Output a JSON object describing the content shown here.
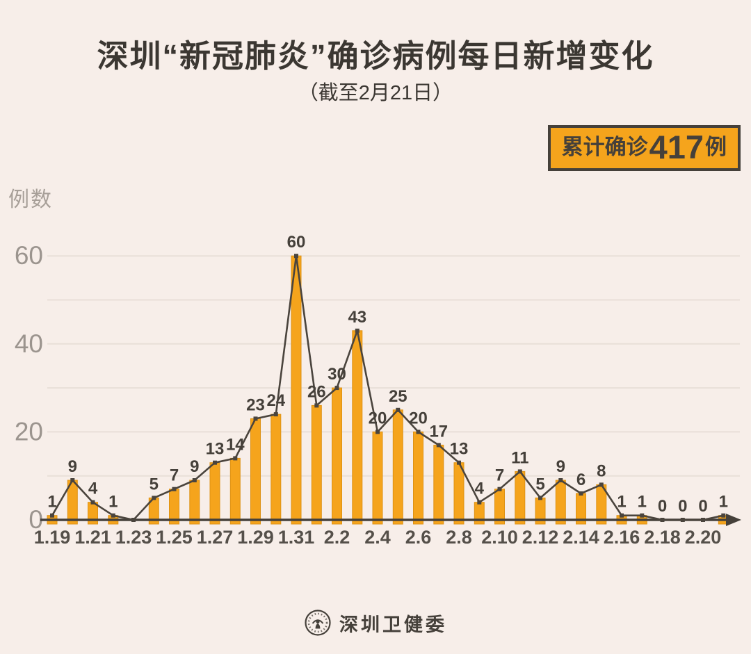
{
  "title": "深圳“新冠肺炎”确诊病例每日新增变化",
  "subtitle": "（截至2月21日）",
  "badge": {
    "prefix": "累计确诊",
    "number": "417",
    "suffix": "例"
  },
  "footer": {
    "org_name": "深圳卫健委",
    "logo": "shenzhen-health-commission-seal-icon"
  },
  "colors": {
    "background": "#F7EEE9",
    "bar": "#F5A41C",
    "bar_edge": "#DE9214",
    "line": "#4A443D",
    "marker": "#4A443D",
    "grid": "#E8DFD8",
    "axis": "#45403A",
    "y_tick": "#9B948E",
    "x_tick": "#55504A",
    "value_label": "#45403A",
    "badge_bg": "#F5A41C",
    "badge_border": "#45403A",
    "title_color": "#3B3732"
  },
  "chart_data": {
    "type": "bar",
    "overlay": "line",
    "title": "深圳“新冠肺炎”确诊病例每日新增变化（截至2月21日）",
    "xlabel": "",
    "ylabel": "例数",
    "ylim": [
      0,
      64
    ],
    "yticks": [
      0,
      20,
      40,
      60
    ],
    "gridlines_at": [
      10,
      20,
      30,
      40,
      50,
      60
    ],
    "grid": "horizontal-only",
    "legend": null,
    "x_tick_every": 2,
    "categories": [
      "1.19",
      "1.20",
      "1.21",
      "1.22",
      "1.23",
      "1.24",
      "1.25",
      "1.26",
      "1.27",
      "1.28",
      "1.29",
      "1.30",
      "1.31",
      "2.1",
      "2.2",
      "2.3",
      "2.4",
      "2.5",
      "2.6",
      "2.7",
      "2.8",
      "2.9",
      "2.10",
      "2.11",
      "2.12",
      "2.13",
      "2.14",
      "2.15",
      "2.16",
      "2.17",
      "2.18",
      "2.19",
      "2.20",
      "2.21"
    ],
    "values": [
      1,
      9,
      4,
      1,
      0,
      5,
      7,
      9,
      13,
      14,
      23,
      24,
      60,
      26,
      30,
      43,
      20,
      25,
      20,
      17,
      13,
      4,
      7,
      11,
      5,
      9,
      6,
      8,
      1,
      1,
      0,
      0,
      0,
      1
    ],
    "point_labels": [
      "1",
      "9",
      "4",
      "1",
      "",
      "5",
      "7",
      "9",
      "13",
      "14",
      "23",
      "24",
      "60",
      "26",
      "30",
      "43",
      "20",
      "25",
      "20",
      "17",
      "13",
      "4",
      "7",
      "11",
      "5",
      "9",
      "6",
      "8",
      "1",
      "1",
      "0",
      "0",
      "0",
      "1"
    ],
    "cumulative_total": 417
  }
}
